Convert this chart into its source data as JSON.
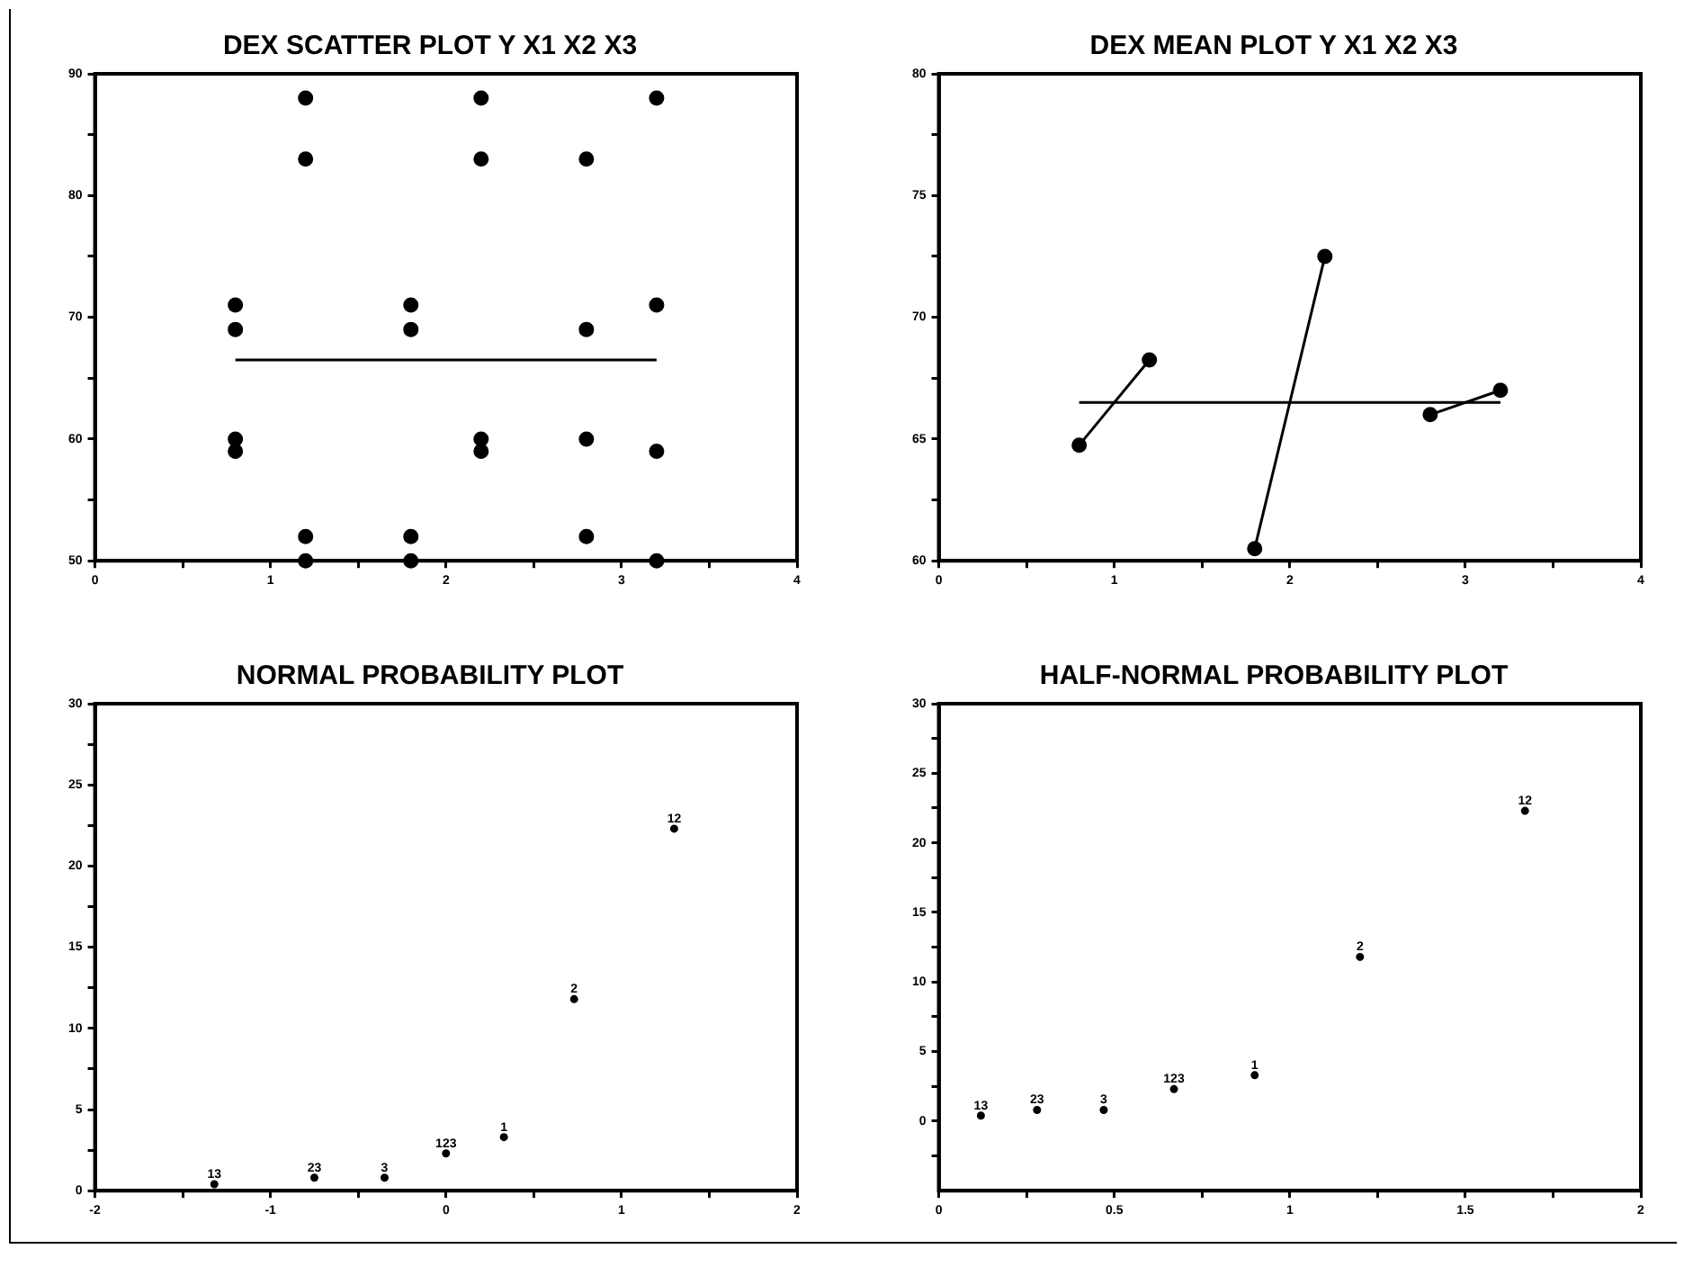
{
  "chart_data": [
    {
      "type": "scatter",
      "title": "DEX SCATTER PLOT Y X1 X2 X3",
      "xlim": [
        0,
        4
      ],
      "xticks": [
        0,
        {
          "value": 0.5,
          "label": null
        },
        1,
        {
          "value": 1.5,
          "label": null
        },
        2,
        {
          "value": 2.5,
          "label": null
        },
        3,
        {
          "value": 3.5,
          "label": null
        },
        4
      ],
      "ylim": [
        50,
        90
      ],
      "yticks": [
        50,
        {
          "value": 55,
          "label": null
        },
        60,
        {
          "value": 65,
          "label": null
        },
        70,
        {
          "value": 75,
          "label": null
        },
        80,
        {
          "value": 85,
          "label": null
        },
        90
      ],
      "series": [
        {
          "color": "#000000",
          "marker": "circle",
          "x": [
            0.8,
            0.8,
            0.8,
            0.8,
            1.2,
            1.2,
            1.2,
            1.2,
            1.8,
            1.8,
            1.8,
            1.8,
            2.2,
            2.2,
            2.2,
            2.2,
            2.8,
            2.8,
            2.8,
            2.8,
            3.2,
            3.2,
            3.2,
            3.2
          ],
          "values": [
            71,
            69,
            60,
            59,
            88,
            83,
            52,
            50,
            71,
            69,
            52,
            50,
            88,
            83,
            60,
            59,
            83,
            69,
            60,
            52,
            88,
            71,
            59,
            50
          ]
        },
        {
          "type": "line",
          "color": "#000000",
          "marker": "none",
          "x": [
            0.8,
            3.2
          ],
          "values": [
            66.5,
            66.5
          ]
        }
      ]
    },
    {
      "type": "line",
      "title": "DEX MEAN PLOT Y X1 X2 X3",
      "xlim": [
        0,
        4
      ],
      "xticks": [
        0,
        {
          "value": 0.5,
          "label": null
        },
        1,
        {
          "value": 1.5,
          "label": null
        },
        2,
        {
          "value": 2.5,
          "label": null
        },
        3,
        {
          "value": 3.5,
          "label": null
        },
        4
      ],
      "ylim": [
        60,
        80
      ],
      "yticks": [
        60,
        {
          "value": 62.5,
          "label": null
        },
        65,
        {
          "value": 67.5,
          "label": null
        },
        70,
        {
          "value": 72.5,
          "label": null
        },
        75,
        {
          "value": 77.5,
          "label": null
        },
        80
      ],
      "series": [
        {
          "color": "#000000",
          "marker": "circle",
          "x": [
            0.8,
            1.2
          ],
          "values": [
            64.75,
            68.25
          ]
        },
        {
          "color": "#000000",
          "marker": "circle",
          "x": [
            1.8,
            2.2
          ],
          "values": [
            60.5,
            72.5
          ]
        },
        {
          "color": "#000000",
          "marker": "circle",
          "x": [
            2.8,
            3.2
          ],
          "values": [
            66,
            67
          ]
        },
        {
          "color": "#000000",
          "marker": "none",
          "x": [
            0.8,
            3.2
          ],
          "values": [
            66.5,
            66.5
          ]
        }
      ]
    },
    {
      "type": "scatter",
      "title": "NORMAL PROBABILITY PLOT",
      "xlim": [
        -2,
        2
      ],
      "xticks": [
        -2,
        {
          "value": -1.5,
          "label": null
        },
        -1,
        {
          "value": -0.5,
          "label": null
        },
        0,
        {
          "value": 0.5,
          "label": null
        },
        1,
        {
          "value": 1.5,
          "label": null
        },
        2
      ],
      "ylim": [
        0,
        30
      ],
      "yticks": [
        0,
        {
          "value": 2.5,
          "label": null
        },
        5,
        {
          "value": 7.5,
          "label": null
        },
        10,
        {
          "value": 12.5,
          "label": null
        },
        15,
        {
          "value": 17.5,
          "label": null
        },
        20,
        {
          "value": 22.5,
          "label": null
        },
        25,
        {
          "value": 27.5,
          "label": null
        },
        30
      ],
      "series": [
        {
          "name": "13",
          "color": "#000000",
          "marker": "circle",
          "x": [
            -1.32
          ],
          "values": [
            0.4
          ]
        },
        {
          "name": "23",
          "color": "#000000",
          "marker": "circle",
          "x": [
            -0.75
          ],
          "values": [
            0.8
          ]
        },
        {
          "name": "3",
          "color": "#000000",
          "marker": "circle",
          "x": [
            -0.35
          ],
          "values": [
            0.8
          ]
        },
        {
          "name": "123",
          "color": "#000000",
          "marker": "circle",
          "x": [
            0
          ],
          "values": [
            2.3
          ]
        },
        {
          "name": "1",
          "color": "#000000",
          "marker": "circle",
          "x": [
            0.33
          ],
          "values": [
            3.3
          ]
        },
        {
          "name": "2",
          "color": "#000000",
          "marker": "circle",
          "x": [
            0.73
          ],
          "values": [
            11.8
          ]
        },
        {
          "name": "12",
          "color": "#000000",
          "marker": "circle",
          "x": [
            1.3
          ],
          "values": [
            22.3
          ]
        }
      ]
    },
    {
      "type": "scatter",
      "title": "HALF-NORMAL PROBABILITY PLOT",
      "xlim": [
        0,
        2
      ],
      "xticks": [
        0,
        {
          "value": 0.25,
          "label": null
        },
        0.5,
        {
          "value": 0.75,
          "label": null
        },
        1,
        {
          "value": 1.25,
          "label": null
        },
        1.5,
        {
          "value": 1.75,
          "label": null
        },
        2
      ],
      "ylim": [
        -5,
        30
      ],
      "yticks": [
        {
          "value": -2.5,
          "label": null
        },
        0,
        {
          "value": 2.5,
          "label": null
        },
        5,
        {
          "value": 7.5,
          "label": null
        },
        10,
        {
          "value": 12.5,
          "label": null
        },
        15,
        {
          "value": 17.5,
          "label": null
        },
        20,
        {
          "value": 22.5,
          "label": null
        },
        25,
        {
          "value": 27.5,
          "label": null
        },
        30
      ],
      "series": [
        {
          "name": "13",
          "color": "#000000",
          "marker": "circle",
          "x": [
            0.12
          ],
          "values": [
            0.4
          ]
        },
        {
          "name": "23",
          "color": "#000000",
          "marker": "circle",
          "x": [
            0.28
          ],
          "values": [
            0.8
          ]
        },
        {
          "name": "3",
          "color": "#000000",
          "marker": "circle",
          "x": [
            0.47
          ],
          "values": [
            0.8
          ]
        },
        {
          "name": "123",
          "color": "#000000",
          "marker": "circle",
          "x": [
            0.67
          ],
          "values": [
            2.3
          ]
        },
        {
          "name": "1",
          "color": "#000000",
          "marker": "circle",
          "x": [
            0.9
          ],
          "values": [
            3.3
          ]
        },
        {
          "name": "2",
          "color": "#000000",
          "marker": "circle",
          "x": [
            1.2
          ],
          "values": [
            11.8
          ]
        },
        {
          "name": "12",
          "color": "#000000",
          "marker": "circle",
          "x": [
            1.67
          ],
          "values": [
            22.3
          ]
        }
      ]
    }
  ]
}
